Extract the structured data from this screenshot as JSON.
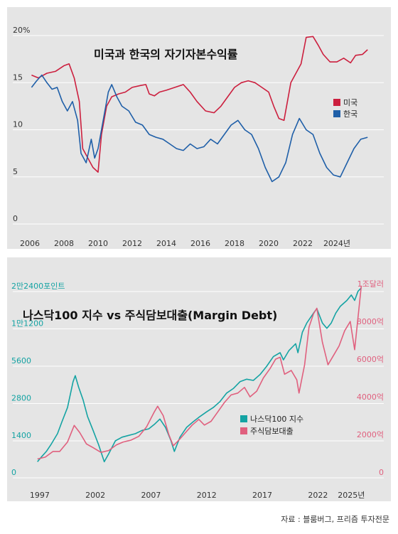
{
  "chart_data": [
    {
      "type": "line",
      "title": "미국과 한국의 자기자본수익률",
      "x_tick_labels": [
        "2006",
        "2008",
        "2010",
        "2012",
        "2014",
        "2016",
        "2018",
        "2020",
        "2022",
        "2024년"
      ],
      "y_tick_labels": [
        "20%",
        "15",
        "10",
        "5",
        "0"
      ],
      "xlim": [
        2006,
        2026
      ],
      "ylim": [
        0,
        20
      ],
      "grid": true,
      "legend_position": "right",
      "series": [
        {
          "name": "미국",
          "color": "#cc1f3e",
          "points": [
            [
              2006.1,
              15.8
            ],
            [
              2006.5,
              15.5
            ],
            [
              2007.0,
              16.0
            ],
            [
              2007.5,
              16.2
            ],
            [
              2008.0,
              16.8
            ],
            [
              2008.3,
              17.0
            ],
            [
              2008.6,
              15.5
            ],
            [
              2008.9,
              13.0
            ],
            [
              2009.1,
              8.0
            ],
            [
              2009.4,
              7.0
            ],
            [
              2009.7,
              6.0
            ],
            [
              2010.0,
              5.5
            ],
            [
              2010.2,
              9.5
            ],
            [
              2010.5,
              12.5
            ],
            [
              2010.8,
              13.5
            ],
            [
              2011.2,
              13.8
            ],
            [
              2011.6,
              14.0
            ],
            [
              2012.0,
              14.5
            ],
            [
              2012.5,
              14.7
            ],
            [
              2012.8,
              14.8
            ],
            [
              2013.0,
              13.8
            ],
            [
              2013.3,
              13.6
            ],
            [
              2013.6,
              14.0
            ],
            [
              2014.0,
              14.2
            ],
            [
              2014.5,
              14.5
            ],
            [
              2015.0,
              14.8
            ],
            [
              2015.4,
              14.0
            ],
            [
              2015.8,
              13.0
            ],
            [
              2016.3,
              12.0
            ],
            [
              2016.8,
              11.8
            ],
            [
              2017.2,
              12.5
            ],
            [
              2017.6,
              13.5
            ],
            [
              2018.0,
              14.5
            ],
            [
              2018.4,
              15.0
            ],
            [
              2018.8,
              15.2
            ],
            [
              2019.2,
              15.0
            ],
            [
              2019.6,
              14.5
            ],
            [
              2020.0,
              14.0
            ],
            [
              2020.3,
              12.5
            ],
            [
              2020.6,
              11.2
            ],
            [
              2020.9,
              11.0
            ],
            [
              2021.3,
              15.0
            ],
            [
              2021.6,
              16.0
            ],
            [
              2021.9,
              17.0
            ],
            [
              2022.2,
              19.8
            ],
            [
              2022.6,
              19.9
            ],
            [
              2022.9,
              19.0
            ],
            [
              2023.2,
              18.0
            ],
            [
              2023.6,
              17.2
            ],
            [
              2024.0,
              17.2
            ],
            [
              2024.4,
              17.6
            ],
            [
              2024.8,
              17.1
            ],
            [
              2025.1,
              17.9
            ],
            [
              2025.5,
              18.0
            ],
            [
              2025.8,
              18.5
            ]
          ]
        },
        {
          "name": "한국",
          "color": "#1f5fa8",
          "points": [
            [
              2006.1,
              14.5
            ],
            [
              2006.4,
              15.2
            ],
            [
              2006.7,
              15.8
            ],
            [
              2007.0,
              15.0
            ],
            [
              2007.3,
              14.3
            ],
            [
              2007.6,
              14.5
            ],
            [
              2007.9,
              13.0
            ],
            [
              2008.2,
              12.0
            ],
            [
              2008.5,
              13.0
            ],
            [
              2008.8,
              11.0
            ],
            [
              2009.0,
              7.5
            ],
            [
              2009.3,
              6.5
            ],
            [
              2009.6,
              9.0
            ],
            [
              2009.8,
              7.0
            ],
            [
              2010.0,
              8.0
            ],
            [
              2010.3,
              11.0
            ],
            [
              2010.6,
              14.0
            ],
            [
              2010.8,
              14.8
            ],
            [
              2011.1,
              13.5
            ],
            [
              2011.4,
              12.5
            ],
            [
              2011.8,
              12.0
            ],
            [
              2012.2,
              10.8
            ],
            [
              2012.6,
              10.5
            ],
            [
              2013.0,
              9.5
            ],
            [
              2013.4,
              9.2
            ],
            [
              2013.8,
              9.0
            ],
            [
              2014.2,
              8.5
            ],
            [
              2014.6,
              8.0
            ],
            [
              2015.0,
              7.8
            ],
            [
              2015.4,
              8.5
            ],
            [
              2015.8,
              8.0
            ],
            [
              2016.2,
              8.2
            ],
            [
              2016.6,
              9.0
            ],
            [
              2017.0,
              8.5
            ],
            [
              2017.4,
              9.5
            ],
            [
              2017.8,
              10.5
            ],
            [
              2018.2,
              11.0
            ],
            [
              2018.6,
              10.0
            ],
            [
              2019.0,
              9.5
            ],
            [
              2019.4,
              8.0
            ],
            [
              2019.8,
              6.0
            ],
            [
              2020.2,
              4.5
            ],
            [
              2020.6,
              5.0
            ],
            [
              2021.0,
              6.5
            ],
            [
              2021.4,
              9.5
            ],
            [
              2021.8,
              11.2
            ],
            [
              2022.2,
              10.0
            ],
            [
              2022.6,
              9.5
            ],
            [
              2023.0,
              7.5
            ],
            [
              2023.4,
              6.0
            ],
            [
              2023.8,
              5.2
            ],
            [
              2024.2,
              5.0
            ],
            [
              2024.6,
              6.5
            ],
            [
              2025.0,
              8.0
            ],
            [
              2025.4,
              9.0
            ],
            [
              2025.8,
              9.2
            ]
          ]
        }
      ]
    },
    {
      "type": "line",
      "title": "나스닥100 지수 vs 주식담보대출(Margin Debt)",
      "x_tick_labels": [
        "1997",
        "2002",
        "2007",
        "2012",
        "2017",
        "2022",
        "2025년"
      ],
      "y_left_tick_labels": [
        "2만2400포인트",
        "1만1200",
        "5600",
        "2800",
        "1400",
        "0"
      ],
      "y_right_tick_labels": [
        "1조달러",
        "8000억",
        "6000억",
        "4000억",
        "2000억",
        "0"
      ],
      "y_left_scale": "log2",
      "xlim": [
        1996.5,
        2026
      ],
      "grid": true,
      "legend_position": "center-right",
      "series": [
        {
          "name": "나스닥100 지수",
          "color": "#14a3a3",
          "axis": "left",
          "points": [
            [
              1996.8,
              950
            ],
            [
              1997.2,
              1050
            ],
            [
              1997.6,
              1150
            ],
            [
              1998.0,
              1300
            ],
            [
              1998.6,
              1600
            ],
            [
              1999.0,
              2000
            ],
            [
              1999.5,
              2600
            ],
            [
              2000.0,
              4200
            ],
            [
              2000.2,
              4700
            ],
            [
              2000.5,
              3800
            ],
            [
              2000.9,
              3000
            ],
            [
              2001.3,
              2200
            ],
            [
              2001.8,
              1700
            ],
            [
              2002.3,
              1300
            ],
            [
              2002.8,
              950
            ],
            [
              2003.2,
              1100
            ],
            [
              2003.8,
              1400
            ],
            [
              2004.4,
              1500
            ],
            [
              2005.0,
              1550
            ],
            [
              2005.6,
              1600
            ],
            [
              2006.2,
              1700
            ],
            [
              2006.8,
              1750
            ],
            [
              2007.3,
              1900
            ],
            [
              2007.8,
              2100
            ],
            [
              2008.3,
              1800
            ],
            [
              2008.8,
              1400
            ],
            [
              2009.1,
              1150
            ],
            [
              2009.6,
              1500
            ],
            [
              2010.2,
              1800
            ],
            [
              2010.8,
              2000
            ],
            [
              2011.4,
              2200
            ],
            [
              2012.0,
              2400
            ],
            [
              2012.6,
              2600
            ],
            [
              2013.2,
              2900
            ],
            [
              2013.8,
              3400
            ],
            [
              2014.4,
              3700
            ],
            [
              2015.0,
              4200
            ],
            [
              2015.6,
              4400
            ],
            [
              2016.2,
              4300
            ],
            [
              2016.8,
              4800
            ],
            [
              2017.4,
              5600
            ],
            [
              2018.0,
              6700
            ],
            [
              2018.6,
              7200
            ],
            [
              2018.9,
              6300
            ],
            [
              2019.4,
              7500
            ],
            [
              2020.0,
              8500
            ],
            [
              2020.2,
              7200
            ],
            [
              2020.6,
              10500
            ],
            [
              2021.0,
              12500
            ],
            [
              2021.6,
              15000
            ],
            [
              2021.9,
              16300
            ],
            [
              2022.4,
              12500
            ],
            [
              2022.8,
              11300
            ],
            [
              2023.2,
              12500
            ],
            [
              2023.6,
              15000
            ],
            [
              2024.0,
              17000
            ],
            [
              2024.6,
              19000
            ],
            [
              2025.0,
              21000
            ],
            [
              2025.3,
              19000
            ],
            [
              2025.6,
              22500
            ],
            [
              2025.9,
              24000
            ]
          ]
        },
        {
          "name": "주식담보대출",
          "color": "#e0607e",
          "axis": "right",
          "points": [
            [
              1996.8,
              1000
            ],
            [
              1997.5,
              1100
            ],
            [
              1998.2,
              1400
            ],
            [
              1998.8,
              1400
            ],
            [
              1999.5,
              1900
            ],
            [
              2000.1,
              2780
            ],
            [
              2000.6,
              2400
            ],
            [
              2001.2,
              1800
            ],
            [
              2001.8,
              1600
            ],
            [
              2002.5,
              1350
            ],
            [
              2003.2,
              1450
            ],
            [
              2003.9,
              1750
            ],
            [
              2004.5,
              1900
            ],
            [
              2005.2,
              2000
            ],
            [
              2005.9,
              2200
            ],
            [
              2006.6,
              2700
            ],
            [
              2007.3,
              3500
            ],
            [
              2007.6,
              3800
            ],
            [
              2008.1,
              3300
            ],
            [
              2008.6,
              2300
            ],
            [
              2009.0,
              1700
            ],
            [
              2009.5,
              2000
            ],
            [
              2010.1,
              2400
            ],
            [
              2010.7,
              2800
            ],
            [
              2011.3,
              3100
            ],
            [
              2011.8,
              2800
            ],
            [
              2012.4,
              3000
            ],
            [
              2013.0,
              3500
            ],
            [
              2013.6,
              4000
            ],
            [
              2014.2,
              4400
            ],
            [
              2014.8,
              4500
            ],
            [
              2015.4,
              4800
            ],
            [
              2015.9,
              4300
            ],
            [
              2016.5,
              4600
            ],
            [
              2017.1,
              5300
            ],
            [
              2017.7,
              5800
            ],
            [
              2018.2,
              6300
            ],
            [
              2018.6,
              6400
            ],
            [
              2019.0,
              5500
            ],
            [
              2019.6,
              5700
            ],
            [
              2020.1,
              5200
            ],
            [
              2020.3,
              4500
            ],
            [
              2020.8,
              6000
            ],
            [
              2021.2,
              8000
            ],
            [
              2021.6,
              8700
            ],
            [
              2021.9,
              9000
            ],
            [
              2022.4,
              7200
            ],
            [
              2022.9,
              6000
            ],
            [
              2023.4,
              6500
            ],
            [
              2023.9,
              7000
            ],
            [
              2024.4,
              7800
            ],
            [
              2024.9,
              8300
            ],
            [
              2025.3,
              6800
            ],
            [
              2025.6,
              8500
            ],
            [
              2025.9,
              10200
            ]
          ]
        }
      ]
    }
  ],
  "source": "자료 : 블룸버그, 프리즘 투자전문"
}
